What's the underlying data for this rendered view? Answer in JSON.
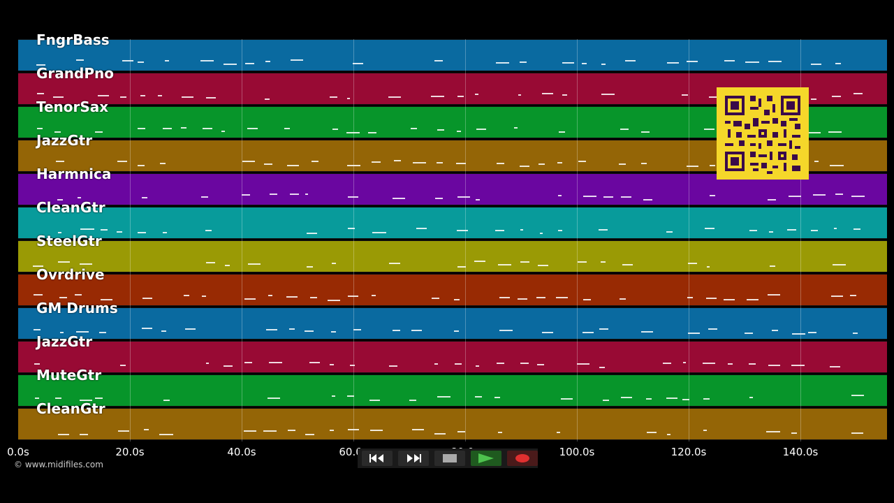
{
  "tracks": [
    {
      "label": "FngrBass",
      "color": "#0a6aa0"
    },
    {
      "label": "GrandPno",
      "color": "#980a34"
    },
    {
      "label": "TenorSax",
      "color": "#07952a"
    },
    {
      "label": "JazzGtr",
      "color": "#946506"
    },
    {
      "label": "Harmnica",
      "color": "#6a06a0"
    },
    {
      "label": "CleanGtr",
      "color": "#089b9b"
    },
    {
      "label": "SteelGtr",
      "color": "#9a9a05"
    },
    {
      "label": "Ovrdrive",
      "color": "#982a03"
    },
    {
      "label": "GM Drums",
      "color": "#0a6aa0"
    },
    {
      "label": "JazzGtr",
      "color": "#980a34"
    },
    {
      "label": "MuteGtr",
      "color": "#07952a"
    },
    {
      "label": "CleanGtr",
      "color": "#946506"
    }
  ],
  "ticks": [
    "0.0s",
    "20.0s",
    "40.0s",
    "60.0s",
    "80.0s",
    "100.0s",
    "120.0s",
    "140.0s"
  ],
  "copyright": "© www.midifiles.com",
  "transport": {
    "rewind_icon": "rewind-icon",
    "fastforward_icon": "fast-forward-icon",
    "stop_icon": "stop-icon",
    "play_icon": "play-icon",
    "record_icon": "record-icon"
  },
  "qr_code": "qr-code-icon"
}
